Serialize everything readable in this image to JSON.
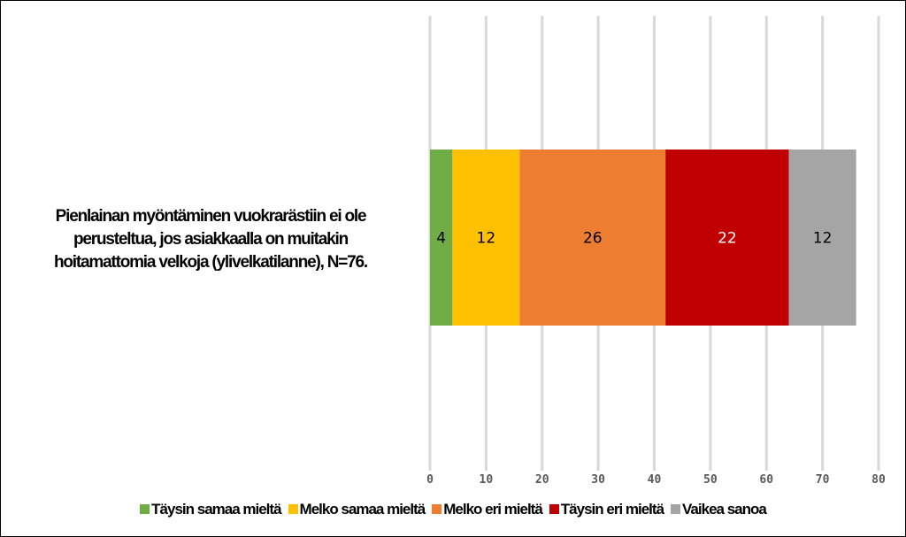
{
  "chart_data": {
    "type": "bar",
    "orientation": "horizontal",
    "stacked": true,
    "categories": [
      "Pienlainan myöntäminen vuokrarästiin ei ole perusteltua, jos asiakkaalla on muitakin hoitamattomia velkoja (ylivelkatilanne), N=76."
    ],
    "category_label_lines": [
      "Pienlainan myöntäminen vuokrarästiin ei ole",
      "perusteltua, jos asiakkaalla on muitakin",
      "hoitamattomia velkoja (ylivelkatilanne), N=76."
    ],
    "series": [
      {
        "name": "Täysin samaa mieltä",
        "values": [
          4
        ],
        "color": "#70ad47",
        "label_color": "#000000"
      },
      {
        "name": "Melko samaa mieltä",
        "values": [
          12
        ],
        "color": "#ffc000",
        "label_color": "#000000"
      },
      {
        "name": "Melko eri mieltä",
        "values": [
          26
        ],
        "color": "#ed7d31",
        "label_color": "#000000"
      },
      {
        "name": "Täysin eri mieltä",
        "values": [
          22
        ],
        "color": "#c00000",
        "label_color": "#ffffff"
      },
      {
        "name": "Vaikea sanoa",
        "values": [
          12
        ],
        "color": "#a5a5a5",
        "label_color": "#000000"
      }
    ],
    "xlim": [
      0,
      80
    ],
    "xticks": [
      0,
      10,
      20,
      30,
      40,
      50,
      60,
      70,
      80
    ],
    "grid": true,
    "legend_position": "bottom"
  }
}
